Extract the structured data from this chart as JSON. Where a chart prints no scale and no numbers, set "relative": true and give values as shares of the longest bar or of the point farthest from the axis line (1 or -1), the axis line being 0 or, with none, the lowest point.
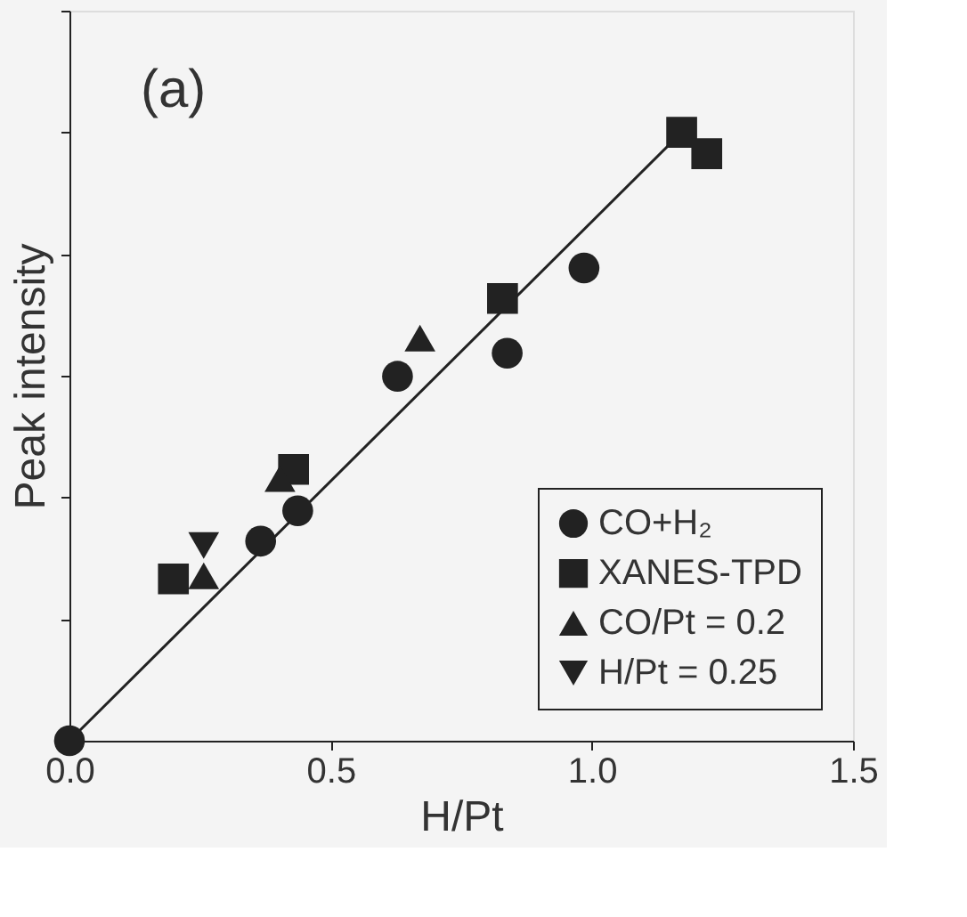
{
  "chart_data": {
    "type": "scatter",
    "relative": true,
    "xlabel": "H/Pt",
    "ylabel": "Peak intensity",
    "annotations": [
      "(a)"
    ],
    "xlim": [
      0,
      1.5
    ],
    "xticks": [
      {
        "value": 0,
        "label": "0.0"
      },
      0.5,
      {
        "value": 1,
        "label": "1.0"
      },
      1.5
    ],
    "legend": "bottom right",
    "tick_labels": "x",
    "series": [
      {
        "name": "CO+H₂",
        "color": "#222222",
        "marker": "circle",
        "x": [
          0,
          0.366,
          0.437,
          0.628,
          0.838,
          0.985
        ],
        "values": [
          0,
          0.328,
          0.378,
          0.599,
          0.637,
          0.777
        ]
      },
      {
        "name": "XANES-TPD",
        "color": "#222222",
        "marker": "square",
        "x": [
          0.199,
          0.429,
          0.829,
          1.172,
          1.22
        ],
        "values": [
          0.266,
          0.446,
          0.727,
          1.0,
          0.965
        ]
      },
      {
        "name": "CO/Pt = 0.2",
        "color": "#222222",
        "marker": "triangle",
        "x": [
          0.257,
          0.403,
          0.671
        ],
        "values": [
          0.271,
          0.431,
          0.662
        ]
      },
      {
        "name": "H/Pt = 0.25",
        "color": "#222222",
        "marker": "triangle-down",
        "x": [
          0.257
        ],
        "values": [
          0.321
        ]
      },
      {
        "type": "line",
        "color": "#222222",
        "x": [
          0,
          1.172
        ],
        "values": [
          0,
          1.0
        ]
      }
    ]
  }
}
